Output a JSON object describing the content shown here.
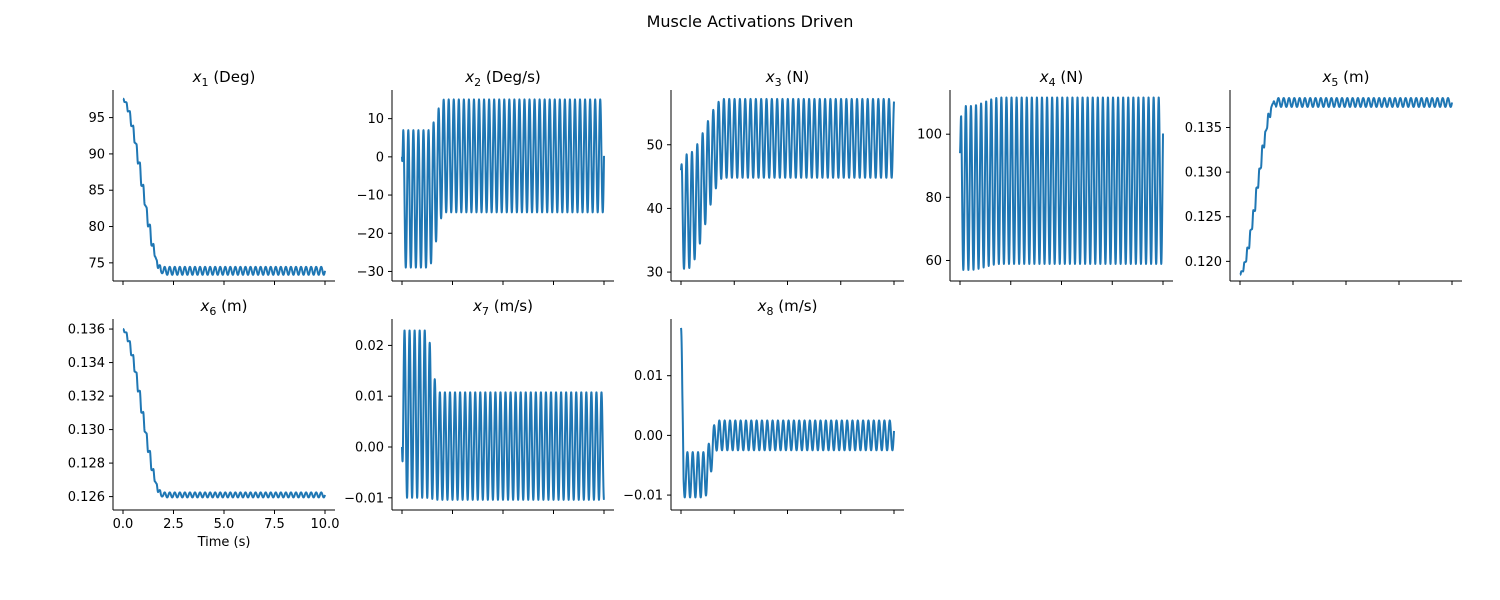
{
  "figure": {
    "title": "Muscle Activations Driven",
    "line_color": "#1f77b4",
    "xlabel": "Time (s)"
  },
  "chart_data": [
    {
      "type": "line",
      "var": "x",
      "sub": "1",
      "unit": " (Deg)",
      "xlim": [
        0,
        10
      ],
      "ylim": [
        72.5,
        98.8
      ],
      "xticks": [
        0,
        2.5,
        5,
        7.5,
        10
      ],
      "xtick_labels": [],
      "yticks": [
        75,
        80,
        85,
        90,
        95
      ],
      "ytick_labels": [
        "75",
        "80",
        "85",
        "90",
        "95"
      ],
      "profile": {
        "start": 97.6,
        "settle": 73.9,
        "settle_time": 2.0,
        "steps": 12,
        "amp_start": 0.35,
        "amp_end": 0.55,
        "freq": 4.0,
        "ramp": "staircase"
      }
    },
    {
      "type": "line",
      "var": "x",
      "sub": "2",
      "unit": " (Deg/s)",
      "xlim": [
        0,
        10
      ],
      "ylim": [
        -32.5,
        17.5
      ],
      "xticks": [
        0,
        2.5,
        5,
        7.5,
        10
      ],
      "xtick_labels": [],
      "yticks": [
        -30,
        -20,
        -10,
        0,
        10
      ],
      "ytick_labels": [
        "−30",
        "−20",
        "−10",
        "0",
        "10"
      ],
      "profile": {
        "type": "osc",
        "freq": 4.0,
        "phase": 0.0,
        "c1": -11.0,
        "a1": 18.0,
        "c2": 0.25,
        "a2": 14.8,
        "transition": [
          1.3,
          2.1
        ],
        "start_value": 0.0
      }
    },
    {
      "type": "line",
      "var": "x",
      "sub": "3",
      "unit": " (N)",
      "xlim": [
        0,
        10
      ],
      "ylim": [
        28.6,
        58.6
      ],
      "xticks": [
        0,
        2.5,
        5,
        7.5,
        10
      ],
      "xtick_labels": [],
      "yticks": [
        30,
        40,
        50
      ],
      "ytick_labels": [
        "30",
        "40",
        "50"
      ],
      "profile": {
        "type": "osc",
        "freq": 4.0,
        "phase": 1.2,
        "c1": 39.5,
        "a1": 9.0,
        "c2": 51.0,
        "a2": 6.2,
        "transition": [
          0.3,
          2.0
        ],
        "start_value": 46.0
      }
    },
    {
      "type": "line",
      "var": "x",
      "sub": "4",
      "unit": " (N)",
      "xlim": [
        0,
        10
      ],
      "ylim": [
        53.5,
        114.0
      ],
      "xticks": [
        0,
        2.5,
        5,
        7.5,
        10
      ],
      "xtick_labels": [],
      "yticks": [
        60,
        80,
        100
      ],
      "ytick_labels": [
        "60",
        "80",
        "100"
      ],
      "profile": {
        "type": "osc",
        "freq": 4.0,
        "phase": 0.6,
        "c1": 83.0,
        "a1": 26.0,
        "c2": 85.3,
        "a2": 26.4,
        "transition": [
          0.5,
          2.0
        ],
        "start_value": 94.0
      }
    },
    {
      "type": "line",
      "var": "x",
      "sub": "5",
      "unit": " (m)",
      "xlim": [
        0,
        10
      ],
      "ylim": [
        0.1178,
        0.1392
      ],
      "xticks": [
        0,
        2.5,
        5,
        7.5,
        10
      ],
      "xtick_labels": [],
      "yticks": [
        0.12,
        0.125,
        0.13,
        0.135
      ],
      "ytick_labels": [
        "0.120",
        "0.125",
        "0.130",
        "0.135"
      ],
      "profile": {
        "start": 0.1185,
        "settle": 0.1378,
        "settle_time": 1.7,
        "steps": 12,
        "amp_start": 0.0003,
        "amp_end": 0.0005,
        "freq": 4.0,
        "ramp": "staircase"
      }
    },
    {
      "type": "line",
      "var": "x",
      "sub": "6",
      "unit": " (m)",
      "xlim": [
        0,
        10
      ],
      "ylim": [
        0.1252,
        0.1366
      ],
      "xticks": [
        0,
        2.5,
        5,
        7.5,
        10
      ],
      "xtick_labels": [
        "0.0",
        "2.5",
        "5.0",
        "7.5",
        "10.0"
      ],
      "yticks": [
        0.126,
        0.128,
        0.13,
        0.132,
        0.134,
        0.136
      ],
      "ytick_labels": [
        "0.126",
        "0.128",
        "0.130",
        "0.132",
        "0.134",
        "0.136"
      ],
      "profile": {
        "start": 0.136,
        "settle": 0.1261,
        "settle_time": 2.0,
        "steps": 12,
        "amp_start": 0.0001,
        "amp_end": 0.00015,
        "freq": 4.0,
        "ramp": "staircase"
      }
    },
    {
      "type": "line",
      "var": "x",
      "sub": "7",
      "unit": " (m/s)",
      "xlim": [
        0,
        10
      ],
      "ylim": [
        -0.0124,
        0.0252
      ],
      "xticks": [
        0,
        2.5,
        5,
        7.5,
        10
      ],
      "xtick_labels": [],
      "yticks": [
        -0.01,
        0,
        0.01,
        0.02
      ],
      "ytick_labels": [
        "−0.01",
        "0.00",
        "0.01",
        "0.02"
      ],
      "profile": {
        "type": "osc",
        "freq": 4.0,
        "phase": -1.5708,
        "c1": 0.0065,
        "a1": 0.0165,
        "c2": 0.0002,
        "a2": 0.0106,
        "transition": [
          1.2,
          1.8
        ],
        "start_value": 0.0
      }
    },
    {
      "type": "line",
      "var": "x",
      "sub": "8",
      "unit": " (m/s)",
      "xlim": [
        0,
        10
      ],
      "ylim": [
        -0.0125,
        0.0195
      ],
      "xticks": [
        0,
        2.5,
        5,
        7.5,
        10
      ],
      "xtick_labels": [],
      "yticks": [
        -0.01,
        0,
        0.01
      ],
      "ytick_labels": [
        "−0.01",
        "0.00",
        "0.01"
      ],
      "profile": {
        "type": "osc",
        "freq": 4.0,
        "phase": 0.3,
        "c1": -0.0066,
        "a1": 0.0038,
        "c2": 0.0,
        "a2": 0.0025,
        "transition": [
          1.1,
          1.7
        ],
        "start_value": 0.018,
        "spike": 0.08
      }
    }
  ]
}
